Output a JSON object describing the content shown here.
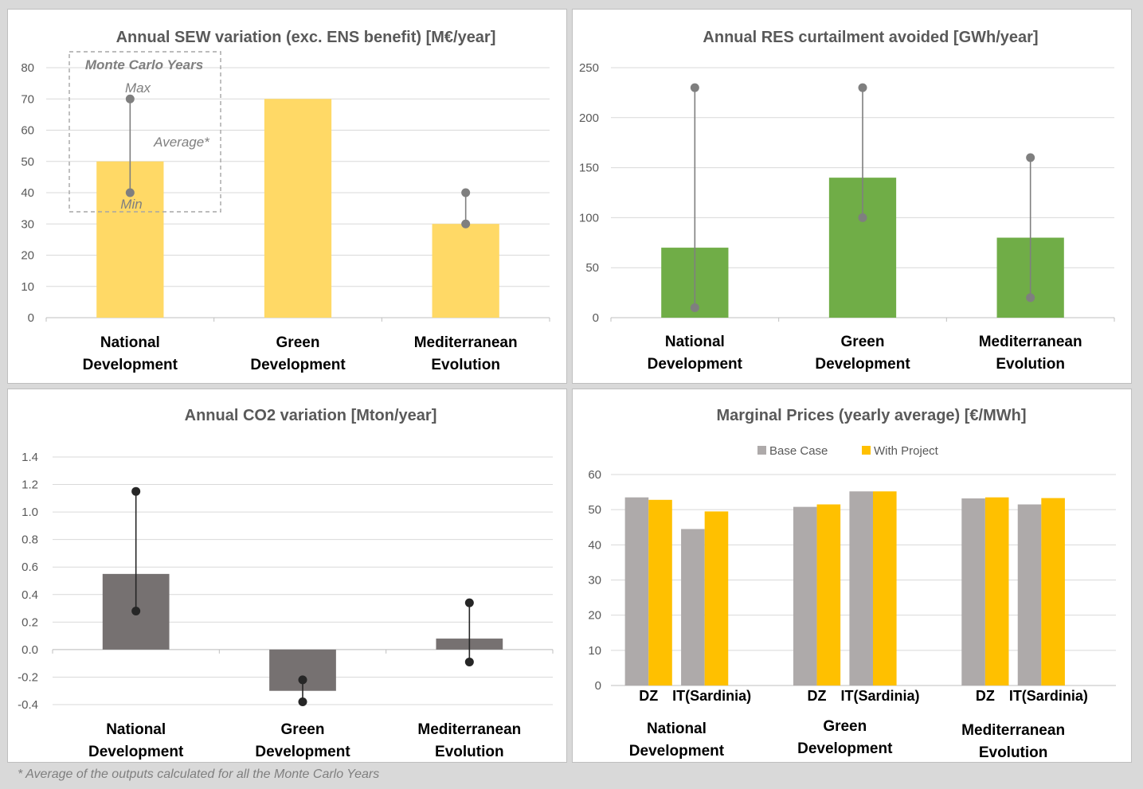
{
  "footnote": "* Average of the outputs calculated for all the Monte Carlo Years",
  "chart_data": [
    {
      "type": "bar",
      "title": "Annual  SEW variation (exc. ENS benefit) [M€/year]",
      "categories": [
        [
          "National",
          "Development"
        ],
        [
          "Green",
          "Development"
        ],
        [
          "Mediterranean",
          "Evolution"
        ]
      ],
      "values": [
        50,
        70,
        30
      ],
      "ranges": [
        [
          40,
          70
        ],
        null,
        [
          30,
          40
        ]
      ],
      "ylim": [
        0,
        80
      ],
      "yticks": [
        "0",
        "10",
        "20",
        "30",
        "40",
        "50",
        "60",
        "70",
        "80"
      ],
      "bar_color": "#ffd966",
      "legend_box": {
        "title": "Monte Carlo Years",
        "max": "Max",
        "average": "Average*",
        "min": "Min"
      }
    },
    {
      "type": "bar",
      "title": "Annual  RES curtailment avoided [GWh/year]",
      "categories": [
        [
          "National",
          "Development"
        ],
        [
          "Green",
          "Development"
        ],
        [
          "Mediterranean",
          "Evolution"
        ]
      ],
      "values": [
        70,
        140,
        80
      ],
      "ranges": [
        [
          10,
          230
        ],
        [
          100,
          230
        ],
        [
          20,
          160
        ]
      ],
      "ylim": [
        0,
        250
      ],
      "yticks": [
        "0",
        "50",
        "100",
        "150",
        "200",
        "250"
      ],
      "bar_color": "#70ad47"
    },
    {
      "type": "bar",
      "title": "Annual  CO2 variation [Mton/year]",
      "categories": [
        [
          "National",
          "Development"
        ],
        [
          "Green",
          "Development"
        ],
        [
          "Mediterranean",
          "Evolution"
        ]
      ],
      "values": [
        0.55,
        -0.3,
        0.08
      ],
      "ranges": [
        [
          0.28,
          1.15
        ],
        [
          -0.38,
          -0.22
        ],
        [
          -0.09,
          0.34
        ]
      ],
      "ylim": [
        -0.4,
        1.4
      ],
      "yticks": [
        "-0.4",
        "-0.2",
        "0.0",
        "0.2",
        "0.4",
        "0.6",
        "0.8",
        "1.0",
        "1.2",
        "1.4"
      ],
      "bar_color": "#767171"
    },
    {
      "type": "bar",
      "title": "Marginal Prices (yearly average) [€/MWh]",
      "groups": [
        [
          "National",
          "Development"
        ],
        [
          "Green",
          "Development"
        ],
        [
          "Mediterranean",
          "Evolution"
        ]
      ],
      "subcategories": [
        "DZ",
        "IT(Sardinia)"
      ],
      "series": [
        {
          "name": "Base Case",
          "color": "#aeaaaa",
          "values": [
            [
              53.5,
              44.5
            ],
            [
              50.8,
              55.2
            ],
            [
              53.2,
              51.5
            ]
          ]
        },
        {
          "name": "With Project",
          "color": "#ffc000",
          "values": [
            [
              52.8,
              49.5
            ],
            [
              51.5,
              55.2
            ],
            [
              53.5,
              53.3
            ]
          ]
        }
      ],
      "ylim": [
        0,
        60
      ],
      "yticks": [
        "0",
        "10",
        "20",
        "30",
        "40",
        "50",
        "60"
      ],
      "legend": "top"
    }
  ]
}
